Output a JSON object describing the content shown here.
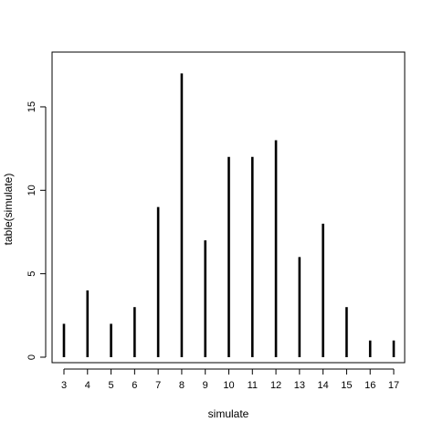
{
  "chart_data": {
    "type": "bar",
    "style": "histogram-lines",
    "xlabel": "simulate",
    "ylabel": "table(simulate)",
    "categories": [
      "3",
      "4",
      "5",
      "6",
      "7",
      "8",
      "9",
      "10",
      "11",
      "12",
      "13",
      "14",
      "15",
      "16",
      "17"
    ],
    "values": [
      2,
      4,
      2,
      3,
      9,
      17,
      7,
      12,
      12,
      13,
      6,
      8,
      3,
      1,
      1
    ],
    "yticks": [
      0,
      5,
      10,
      15
    ],
    "ylim": [
      0,
      17.68
    ],
    "grid": false,
    "legend": "none",
    "color": "#000000"
  }
}
